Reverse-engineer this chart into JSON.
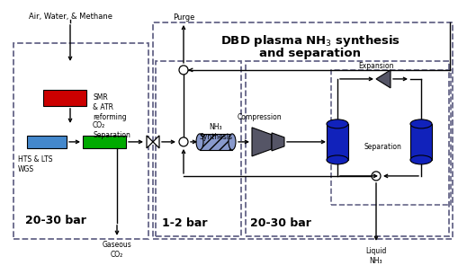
{
  "label_air": "Air, Water, & Methane",
  "label_purge": "Purge",
  "label_smr": "SMR\n& ATR\nreforming",
  "label_co2sep": "CO₂\nSeparation",
  "label_hts": "HTS & LTS\nWGS",
  "label_20_30_left": "20-30 bar",
  "label_1_2": "1-2 bar",
  "label_20_30_right": "20-30 bar",
  "label_nh3syn": "NH₃\nSynthesis",
  "label_compression": "Compression",
  "label_expansion": "Expansion",
  "label_separation": "Separation",
  "label_gaseous_co2": "Gaseous\nCO₂",
  "label_liquid_nh3": "Liquid\nNH₃",
  "title1": "DBD plasma NH",
  "title1_sub": "3",
  "title2": " synthesis",
  "title3": "and separation",
  "color_red": "#cc0000",
  "color_blue_light": "#4488cc",
  "color_green": "#00aa00",
  "color_blue_dark": "#1122bb",
  "color_gray_dark": "#555566",
  "color_hatch_blue": "#8899cc",
  "bg": "#ffffff",
  "dash_color": "#666688"
}
